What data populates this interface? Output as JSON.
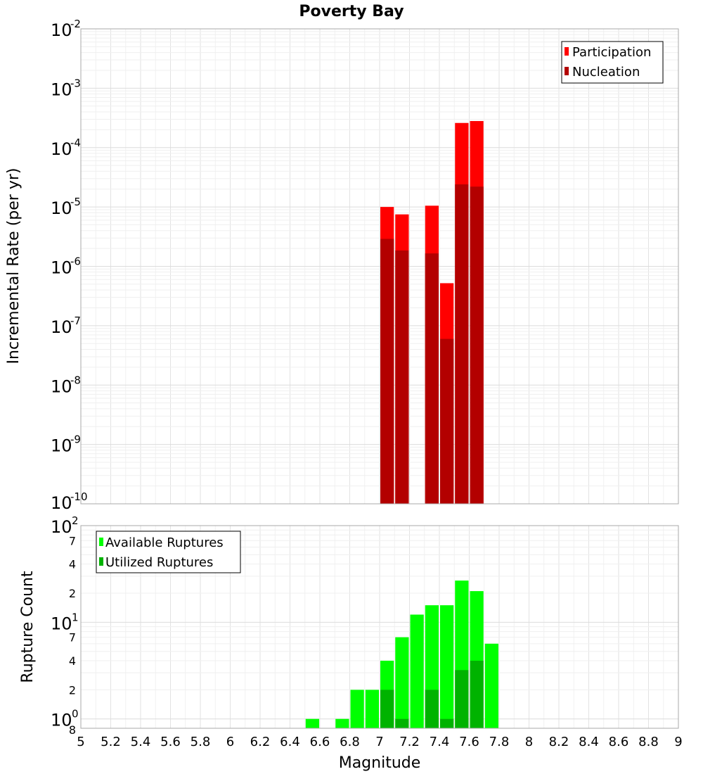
{
  "chart_data": [
    {
      "type": "bar",
      "title": "Poverty Bay",
      "xlabel": "",
      "ylabel": "Incremental Rate (per yr)",
      "xlim": [
        5,
        9
      ],
      "ylim": [
        1e-10,
        0.01
      ],
      "yscale": "log",
      "y_tick_exponents": [
        "-10",
        "-9",
        "-8",
        "-7",
        "-6",
        "-5",
        "-4",
        "-3",
        "-2"
      ],
      "y_tick_base": "10",
      "bin_width": 0.1,
      "legend": "top-right",
      "series": [
        {
          "name": "Participation",
          "color": "#ff0000",
          "x": [
            7.05,
            7.15,
            7.35,
            7.45,
            7.55,
            7.65
          ],
          "values": [
            1e-05,
            7.5e-06,
            1.05e-05,
            5.2e-07,
            0.00026,
            0.00028
          ]
        },
        {
          "name": "Nucleation",
          "color": "#b30000",
          "x": [
            7.05,
            7.15,
            7.35,
            7.45,
            7.55,
            7.65
          ],
          "values": [
            2.9e-06,
            1.85e-06,
            1.65e-06,
            6e-08,
            2.4e-05,
            2.2e-05
          ]
        }
      ]
    },
    {
      "type": "bar",
      "title": "",
      "xlabel": "Magnitude",
      "ylabel": "Rupture Count",
      "xlim": [
        5,
        9
      ],
      "ylim": [
        0.8,
        100
      ],
      "yscale": "log",
      "x_ticks": [
        "5",
        "5.2",
        "5.4",
        "5.6",
        "5.8",
        "6",
        "6.2",
        "6.4",
        "6.6",
        "6.8",
        "7",
        "7.2",
        "7.4",
        "7.6",
        "7.8",
        "8",
        "8.2",
        "8.4",
        "8.6",
        "8.8",
        "9"
      ],
      "y_major_ticks": [
        {
          "base": "10",
          "exp": "0",
          "value": 1
        },
        {
          "base": "10",
          "exp": "1",
          "value": 10
        },
        {
          "base": "10",
          "exp": "2",
          "value": 100
        }
      ],
      "y_minor_ticks": [
        {
          "label": "2",
          "value": 2
        },
        {
          "label": "4",
          "value": 4
        },
        {
          "label": "7",
          "value": 7
        },
        {
          "label": "2",
          "value": 20
        },
        {
          "label": "4",
          "value": 40
        },
        {
          "label": "7",
          "value": 70
        }
      ],
      "y_bottom_label": "8",
      "bin_width": 0.1,
      "legend": "top-left",
      "series": [
        {
          "name": "Available Ruptures",
          "color": "#00ff00",
          "x": [
            6.55,
            6.75,
            6.85,
            6.95,
            7.05,
            7.15,
            7.25,
            7.35,
            7.45,
            7.55,
            7.65,
            7.75
          ],
          "values": [
            1,
            1,
            2,
            2,
            4,
            7,
            12,
            15,
            15,
            27,
            21,
            6
          ]
        },
        {
          "name": "Utilized Ruptures",
          "color": "#00b300",
          "x": [
            7.05,
            7.15,
            7.35,
            7.45,
            7.55,
            7.65
          ],
          "values": [
            2,
            1,
            2,
            1,
            3.2,
            4
          ]
        }
      ]
    }
  ]
}
